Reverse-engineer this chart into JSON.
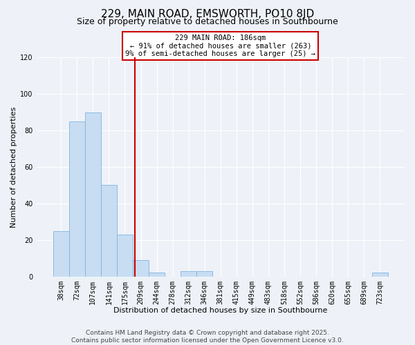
{
  "title": "229, MAIN ROAD, EMSWORTH, PO10 8JD",
  "subtitle": "Size of property relative to detached houses in Southbourne",
  "xlabel": "Distribution of detached houses by size in Southbourne",
  "ylabel": "Number of detached properties",
  "categories": [
    "38sqm",
    "72sqm",
    "107sqm",
    "141sqm",
    "175sqm",
    "209sqm",
    "244sqm",
    "278sqm",
    "312sqm",
    "346sqm",
    "381sqm",
    "415sqm",
    "449sqm",
    "483sqm",
    "518sqm",
    "552sqm",
    "586sqm",
    "620sqm",
    "655sqm",
    "689sqm",
    "723sqm"
  ],
  "values": [
    25,
    85,
    90,
    50,
    23,
    9,
    2,
    0,
    3,
    3,
    0,
    0,
    0,
    0,
    0,
    0,
    0,
    0,
    0,
    0,
    2
  ],
  "bar_color": "#c8ddf2",
  "bar_edgecolor": "#7fb3e0",
  "ylim": [
    0,
    120
  ],
  "yticks": [
    0,
    20,
    40,
    60,
    80,
    100,
    120
  ],
  "red_line_x": 4.62,
  "annotation_text": "229 MAIN ROAD: 186sqm\n← 91% of detached houses are smaller (263)\n9% of semi-detached houses are larger (25) →",
  "annotation_box_color": "#ffffff",
  "annotation_border_color": "#cc0000",
  "footer_line1": "Contains HM Land Registry data © Crown copyright and database right 2025.",
  "footer_line2": "Contains public sector information licensed under the Open Government Licence v3.0.",
  "background_color": "#eef2f8",
  "grid_color": "#ffffff",
  "title_fontsize": 11,
  "subtitle_fontsize": 9,
  "axis_label_fontsize": 8,
  "tick_fontsize": 7,
  "footer_fontsize": 6.5,
  "annot_fontsize": 7.5
}
